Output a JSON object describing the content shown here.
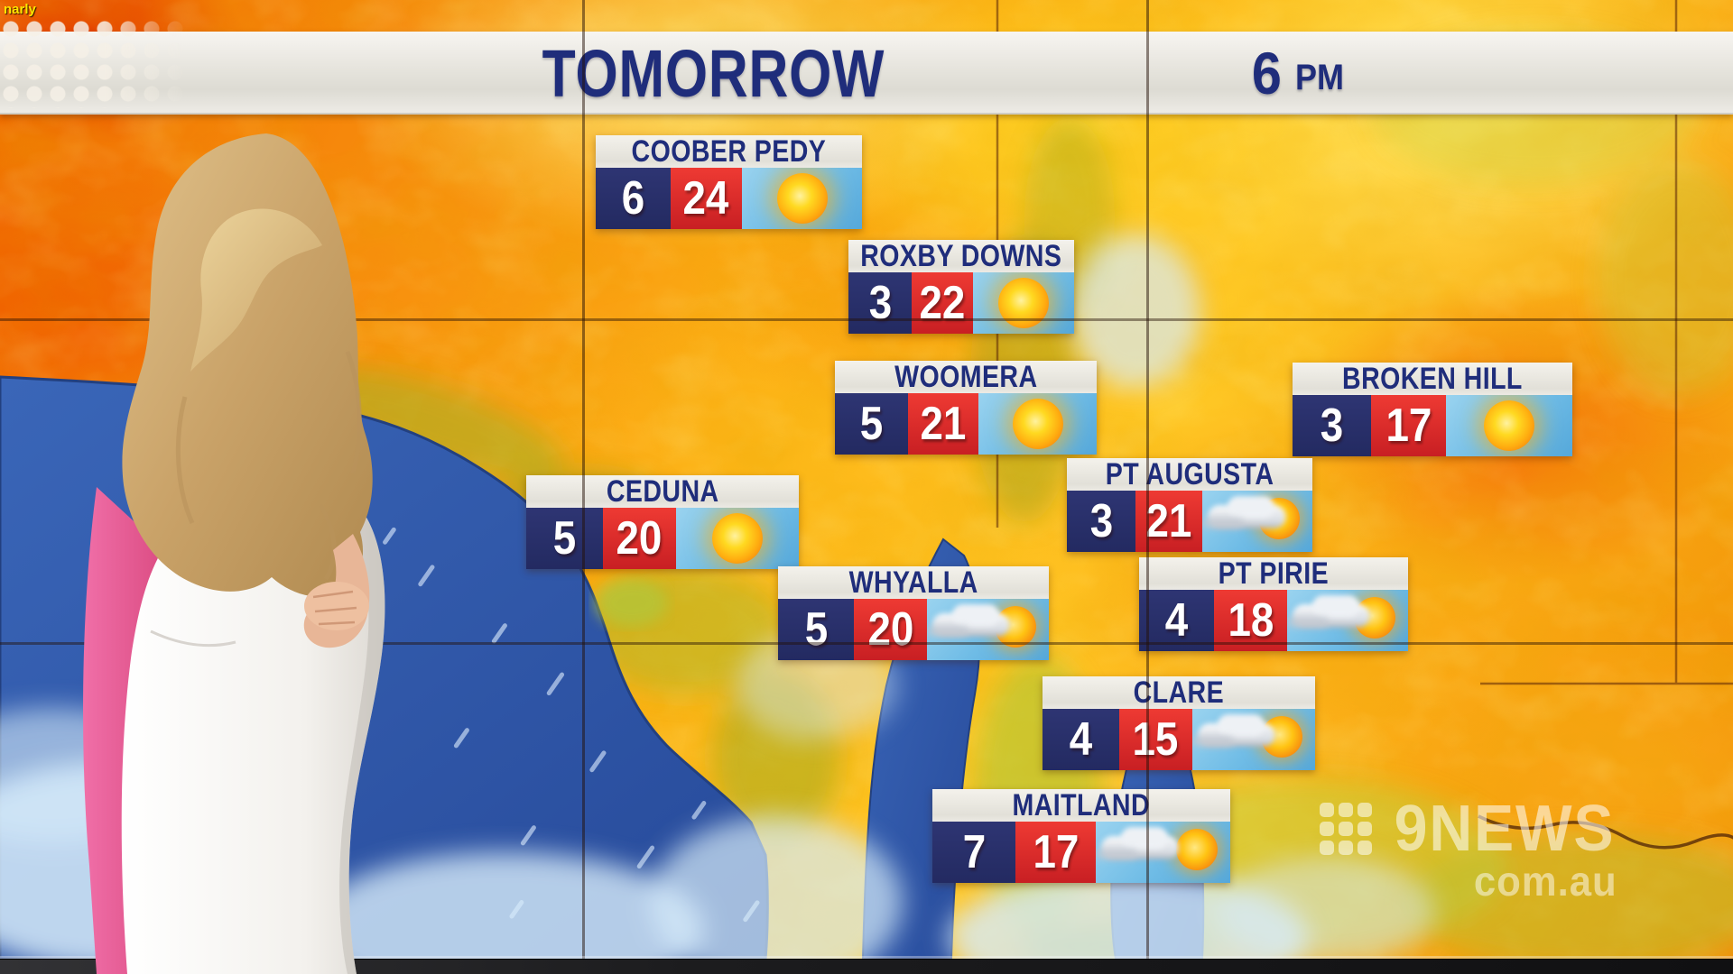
{
  "overlay": {
    "corner_tag": "narly"
  },
  "header": {
    "title": "TOMORROW",
    "time": {
      "hour": "6",
      "meridiem": "PM"
    }
  },
  "stations": [
    {
      "name": "COOBER PEDY",
      "low": "6",
      "high": "24",
      "condition": "sunny"
    },
    {
      "name": "ROXBY DOWNS",
      "low": "3",
      "high": "22",
      "condition": "sunny"
    },
    {
      "name": "WOOMERA",
      "low": "5",
      "high": "21",
      "condition": "sunny"
    },
    {
      "name": "BROKEN HILL",
      "low": "3",
      "high": "17",
      "condition": "sunny"
    },
    {
      "name": "CEDUNA",
      "low": "5",
      "high": "20",
      "condition": "sunny"
    },
    {
      "name": "PT AUGUSTA",
      "low": "3",
      "high": "21",
      "condition": "partly-cloudy"
    },
    {
      "name": "WHYALLA",
      "low": "5",
      "high": "20",
      "condition": "partly-cloudy"
    },
    {
      "name": "PT PIRIE",
      "low": "4",
      "high": "18",
      "condition": "partly-cloudy"
    },
    {
      "name": "CLARE",
      "low": "4",
      "high": "15",
      "condition": "partly-cloudy"
    },
    {
      "name": "MAITLAND",
      "low": "7",
      "high": "17",
      "condition": "partly-cloudy"
    }
  ],
  "watermark": {
    "network": "9NEWS",
    "domain": "com.au"
  },
  "colors": {
    "navy_box": "#272e68",
    "red_box": "#d92b29",
    "title_text": "#1f2d7b",
    "banner_bg": "#e9e7e1",
    "sky_top": "#9ad3ef",
    "sky_bottom": "#55a8da",
    "ocean": "#2d55a8",
    "terrain_hot": "#f78d0d",
    "pink_dress_edge": "#e64b8d"
  }
}
